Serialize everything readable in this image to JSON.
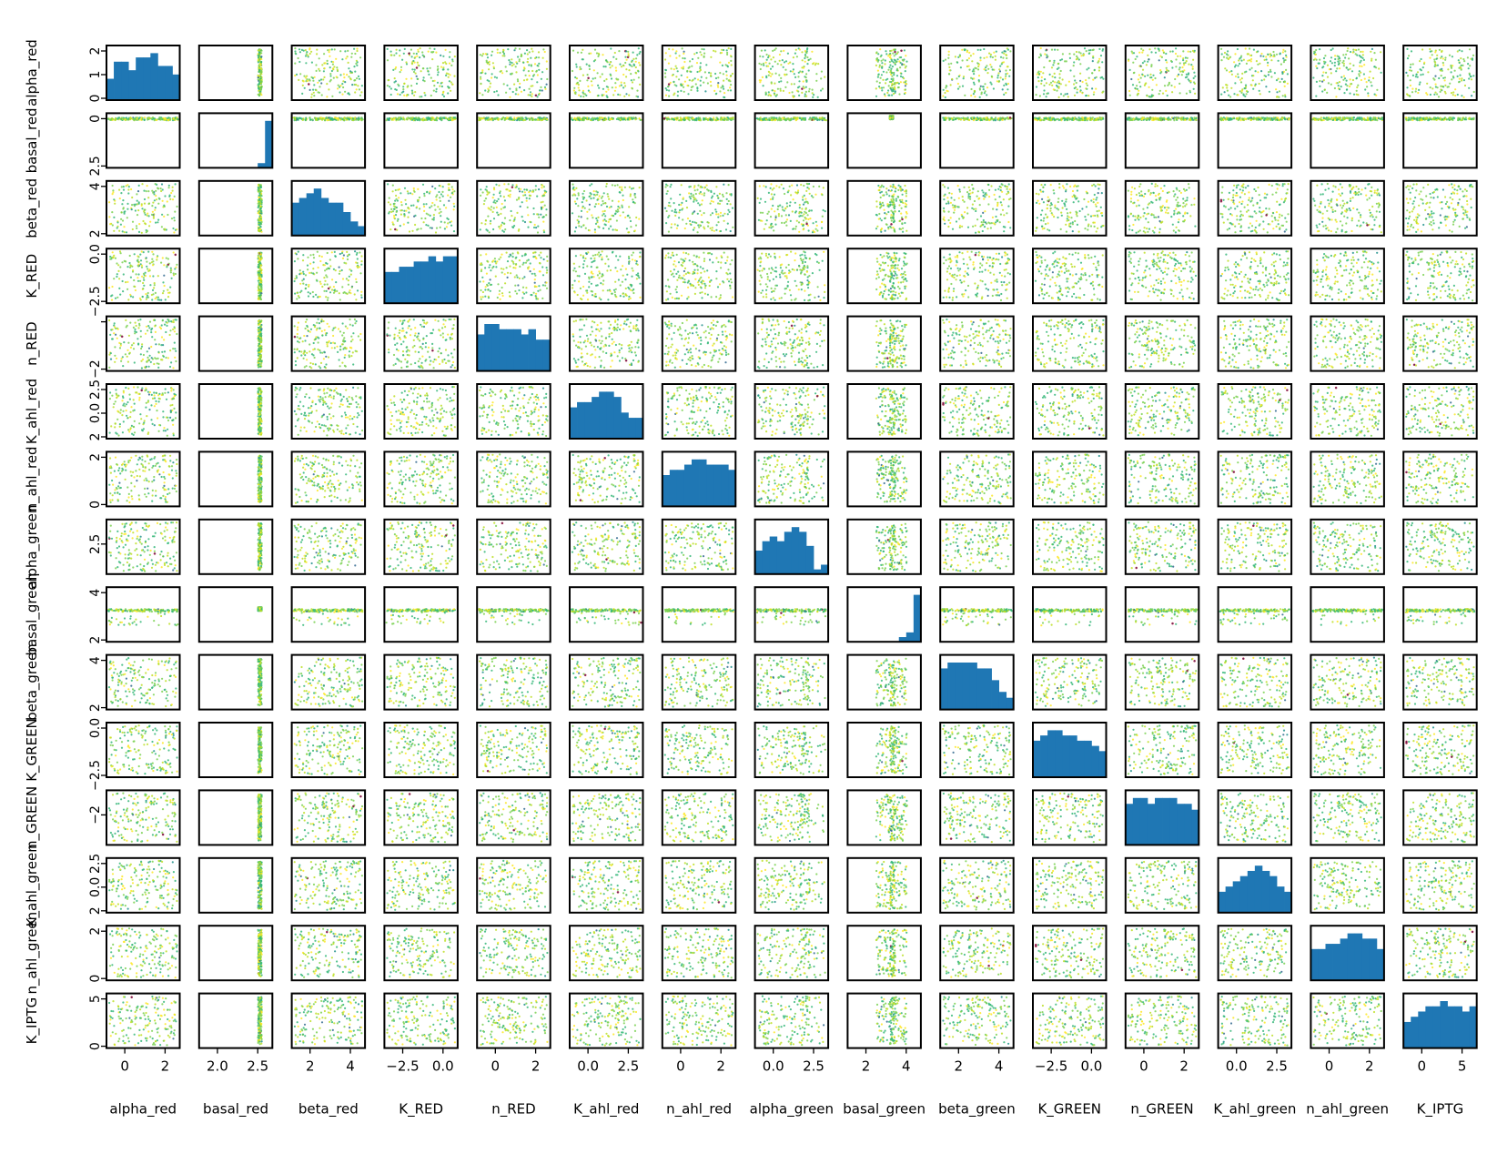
{
  "chart_data": {
    "type": "pairplot",
    "title": "",
    "variables": [
      "alpha_red",
      "basal_red",
      "beta_red",
      "K_RED",
      "n_RED",
      "K_ahl_red",
      "n_ahl_red",
      "alpha_green",
      "basal_green",
      "beta_green",
      "K_GREEN",
      "n_GREEN",
      "K_ahl_green",
      "n_ahl_green",
      "K_IPTG"
    ],
    "x_tick_labels": [
      [
        "0",
        "2"
      ],
      [
        "2.0",
        "2.5"
      ],
      [
        "2",
        "4"
      ],
      [
        "−2.5",
        "0.0"
      ],
      [
        "0",
        "2"
      ],
      [
        "0.0",
        "2.5"
      ],
      [
        "0",
        "2"
      ],
      [
        "0.0",
        "2.5"
      ],
      [
        "2",
        "4"
      ],
      [
        "2",
        "4"
      ],
      [
        "−2.5",
        "0.0"
      ],
      [
        "0",
        "2"
      ],
      [
        "0.0",
        "2.5"
      ],
      [
        "0",
        "2"
      ],
      [
        "0",
        "5"
      ]
    ],
    "y_tick_labels": [
      [
        "0",
        "1",
        "2"
      ],
      [
        "2.5",
        "0"
      ],
      [
        "2",
        "4"
      ],
      [
        "−2.5",
        "0.0"
      ],
      [
        "−2",
        ""
      ],
      [
        "2",
        "0.0",
        "2.5"
      ],
      [
        "0",
        "2"
      ],
      [
        "2.5"
      ],
      [
        "2",
        "4"
      ],
      [
        "2",
        "4"
      ],
      [
        "−2.5",
        "0.0"
      ],
      [
        "−2"
      ],
      [
        "2",
        "0.0",
        "2.5"
      ],
      [
        "0",
        "2"
      ],
      [
        "0",
        "5"
      ]
    ],
    "diagonal_histograms": [
      [
        5,
        9,
        9,
        7,
        10,
        10,
        11,
        8,
        8,
        6
      ],
      [
        0,
        0,
        0,
        0,
        0,
        0,
        0,
        0,
        1,
        10
      ],
      [
        7,
        8,
        9,
        10,
        8,
        7,
        7,
        5,
        3,
        2
      ],
      [
        6,
        6,
        7,
        7,
        8,
        8,
        9,
        8,
        9,
        9
      ],
      [
        7,
        9,
        9,
        8,
        8,
        8,
        7,
        8,
        6,
        6
      ],
      [
        6,
        7,
        7,
        8,
        9,
        9,
        8,
        5,
        4,
        4
      ],
      [
        6,
        7,
        7,
        8,
        9,
        9,
        8,
        8,
        8,
        7
      ],
      [
        5,
        7,
        8,
        7,
        9,
        10,
        9,
        6,
        1,
        2
      ],
      [
        0,
        0,
        0,
        0,
        0,
        0,
        0,
        1,
        2,
        10
      ],
      [
        7,
        8,
        8,
        8,
        8,
        7,
        7,
        5,
        3,
        2
      ],
      [
        7,
        8,
        9,
        9,
        8,
        8,
        7,
        7,
        6,
        5
      ],
      [
        7,
        8,
        8,
        7,
        8,
        8,
        8,
        7,
        7,
        6
      ],
      [
        4,
        5,
        6,
        7,
        8,
        9,
        8,
        7,
        5,
        4
      ],
      [
        6,
        6,
        7,
        7,
        8,
        9,
        9,
        8,
        8,
        6
      ],
      [
        5,
        6,
        7,
        8,
        8,
        9,
        8,
        8,
        7,
        8
      ]
    ],
    "hist_color": "#1f77b4",
    "scatter_colormap": [
      "#440154",
      "#31688e",
      "#21918c",
      "#35b779",
      "#7ad151",
      "#bddf26",
      "#fde725"
    ],
    "grid": false,
    "legend": "none"
  }
}
